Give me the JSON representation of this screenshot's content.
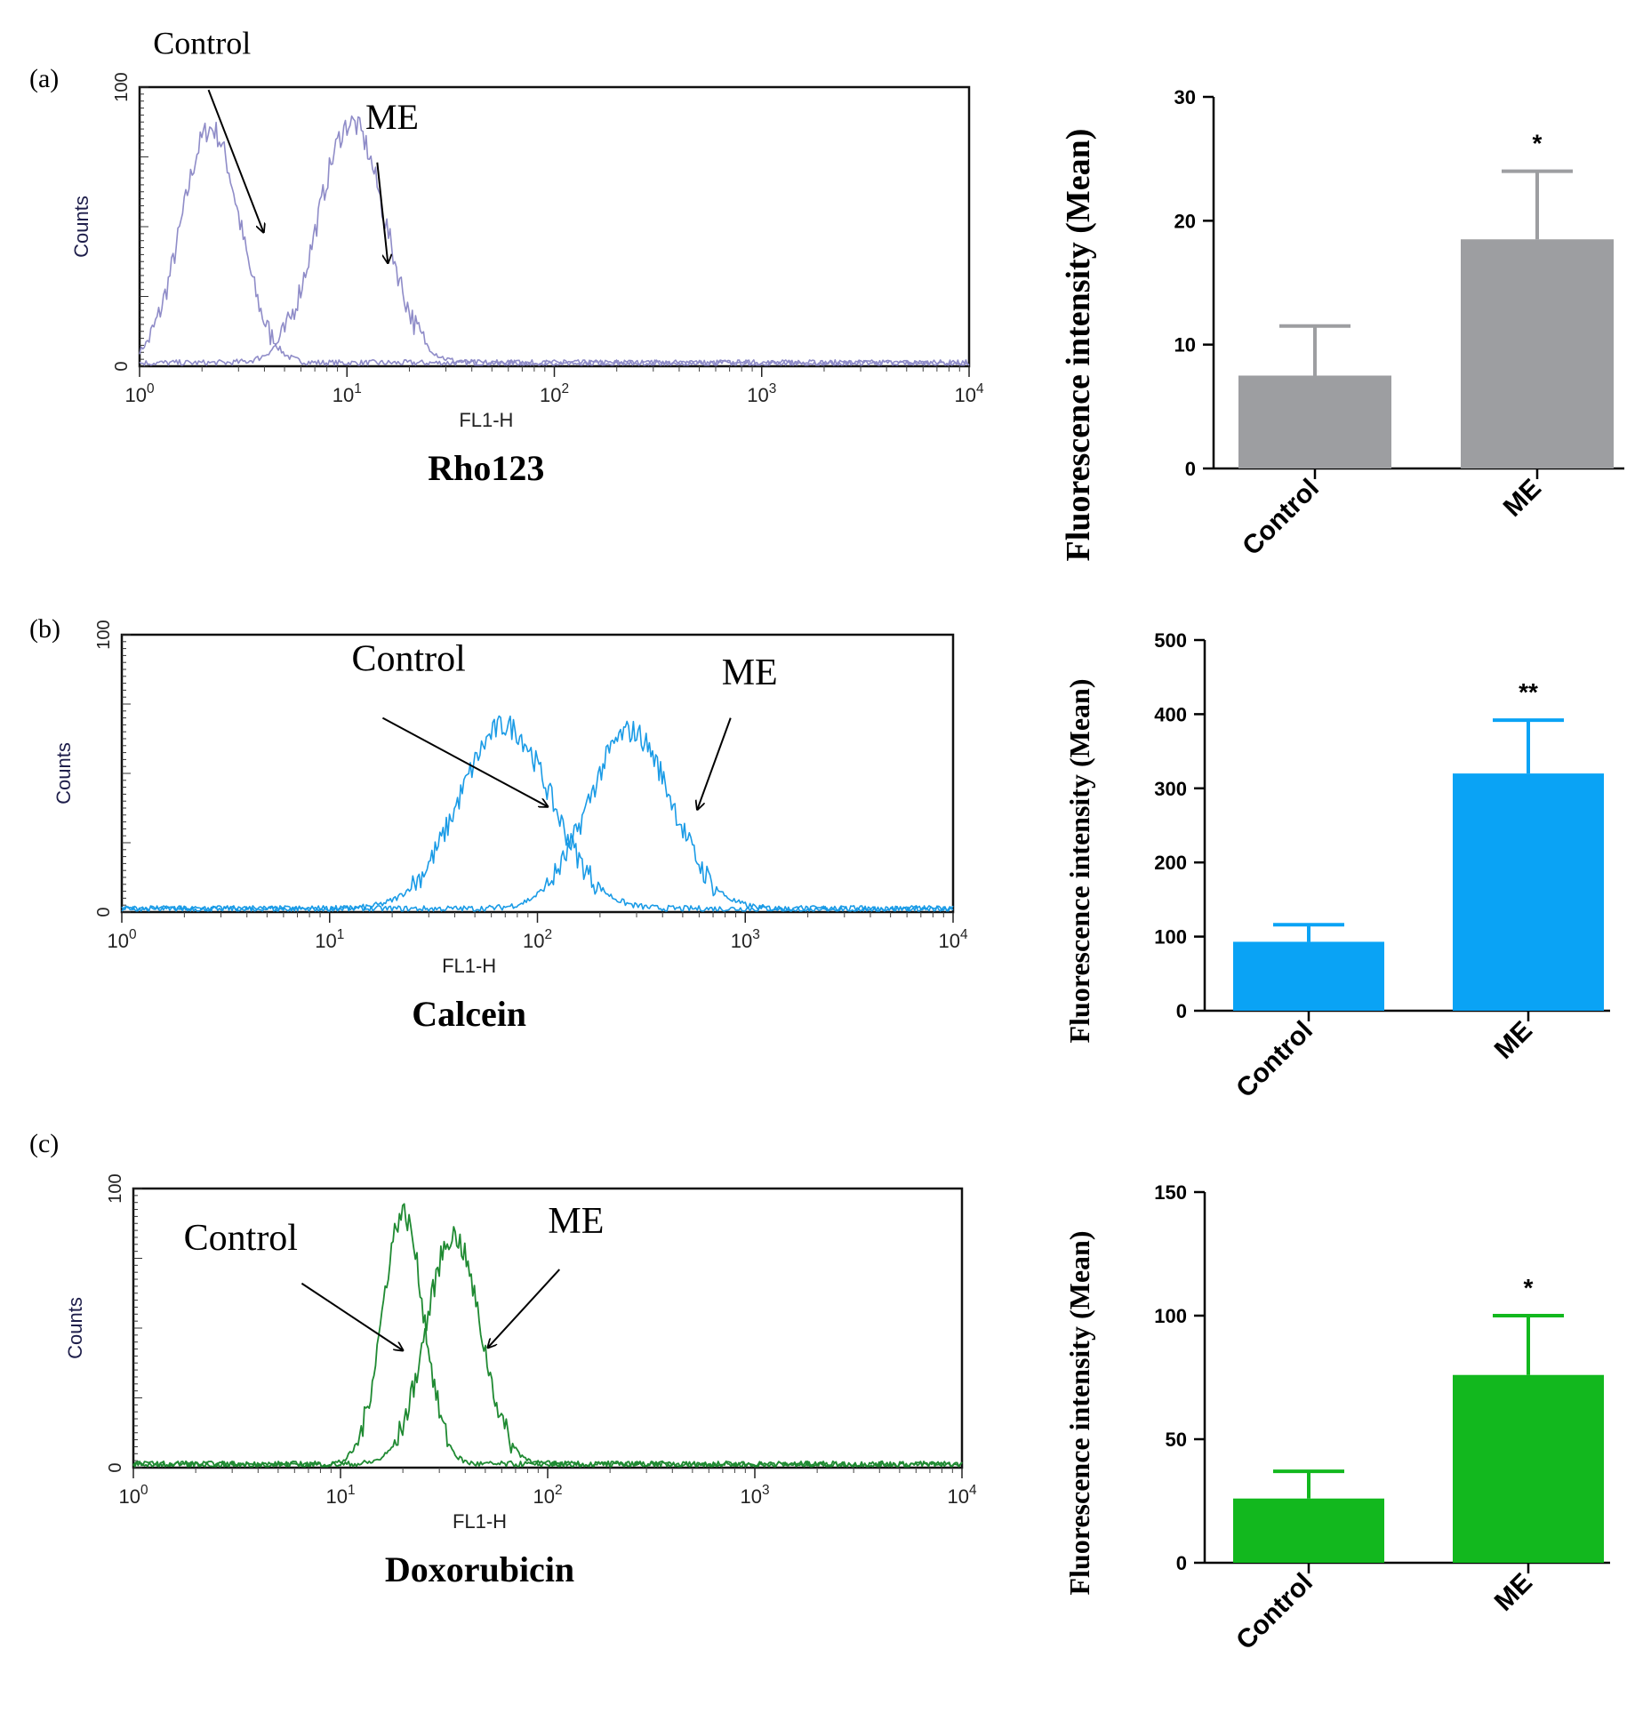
{
  "panels": [
    {
      "panel_label": "(a)",
      "dye": "Rho123",
      "histogram": {
        "y_axis_label": "Counts",
        "x_axis_label": "FL1-H",
        "y_ticks": [
          "0",
          "100"
        ],
        "x_ticks": [
          "10^0",
          "10^1",
          "10^2",
          "10^3",
          "10^4"
        ],
        "control_label": "Control",
        "me_label": "ME",
        "color": "#8f8cc8"
      },
      "bar": {
        "ylabel": "Fluorescence intensity (Mean)",
        "y_ticks": [
          "0",
          "10",
          "20",
          "30"
        ],
        "categories": [
          "Control",
          "ME"
        ],
        "significance": "*",
        "color": "#9d9ea1"
      }
    },
    {
      "panel_label": "(b)",
      "dye": "Calcein",
      "histogram": {
        "y_axis_label": "Counts",
        "x_axis_label": "FL1-H",
        "y_ticks": [
          "0",
          "100"
        ],
        "x_ticks": [
          "10^0",
          "10^1",
          "10^2",
          "10^3",
          "10^4"
        ],
        "control_label": "Control",
        "me_label": "ME",
        "color": "#1a9be6"
      },
      "bar": {
        "ylabel": "Fluorescence intensity (Mean)",
        "y_ticks": [
          "0",
          "100",
          "200",
          "300",
          "400",
          "500"
        ],
        "categories": [
          "Control",
          "ME"
        ],
        "significance": "**",
        "color": "#0aa3f5"
      }
    },
    {
      "panel_label": "(c)",
      "dye": "Doxorubicin",
      "histogram": {
        "y_axis_label": "Counts",
        "x_axis_label": "FL1-H",
        "y_ticks": [
          "0",
          "100"
        ],
        "x_ticks": [
          "10^0",
          "10^1",
          "10^2",
          "10^3",
          "10^4"
        ],
        "control_label": "Control",
        "me_label": "ME",
        "color": "#1f8a32"
      },
      "bar": {
        "ylabel": "Fluorescence intensity (Mean)",
        "y_ticks": [
          "0",
          "50",
          "100",
          "150"
        ],
        "categories": [
          "Control",
          "ME"
        ],
        "significance": "*",
        "color": "#12b81e"
      }
    }
  ],
  "chart_data": [
    {
      "type": "line",
      "title": "Rho123",
      "xlabel": "FL1-H",
      "ylabel": "Counts",
      "x_scale": "log",
      "xlim": [
        1,
        10000
      ],
      "ylim": [
        0,
        100
      ],
      "series": [
        {
          "name": "Control",
          "peak_x": 2.2,
          "peak_y": 84,
          "log_sigma": 0.14
        },
        {
          "name": "ME",
          "peak_x": 10.5,
          "peak_y": 86,
          "log_sigma": 0.16
        }
      ]
    },
    {
      "type": "bar",
      "title": "Rho123",
      "categories": [
        "Control",
        "ME"
      ],
      "values": [
        7.5,
        18.5
      ],
      "errors": [
        4,
        5.5
      ],
      "ylabel": "Fluorescence intensity (Mean)",
      "ylim": [
        0,
        30
      ],
      "annotations": [
        "",
        "*"
      ]
    },
    {
      "type": "line",
      "title": "Calcein",
      "xlabel": "FL1-H",
      "ylabel": "Counts",
      "x_scale": "log",
      "xlim": [
        1,
        10000
      ],
      "ylim": [
        0,
        100
      ],
      "series": [
        {
          "name": "Control",
          "peak_x": 70,
          "peak_y": 66,
          "log_sigma": 0.22
        },
        {
          "name": "ME",
          "peak_x": 280,
          "peak_y": 64,
          "log_sigma": 0.2
        }
      ]
    },
    {
      "type": "bar",
      "title": "Calcein",
      "categories": [
        "Control",
        "ME"
      ],
      "values": [
        93,
        320
      ],
      "errors": [
        23,
        72
      ],
      "ylabel": "Fluorescence intensity (Mean)",
      "ylim": [
        0,
        500
      ],
      "annotations": [
        "",
        "**"
      ]
    },
    {
      "type": "line",
      "title": "Doxorubicin",
      "xlabel": "FL1-H",
      "ylabel": "Counts",
      "x_scale": "log",
      "xlim": [
        1,
        10000
      ],
      "ylim": [
        0,
        100
      ],
      "series": [
        {
          "name": "Control",
          "peak_x": 20,
          "peak_y": 90,
          "log_sigma": 0.1
        },
        {
          "name": "ME",
          "peak_x": 35,
          "peak_y": 82,
          "log_sigma": 0.13
        }
      ]
    },
    {
      "type": "bar",
      "title": "Doxorubicin",
      "categories": [
        "Control",
        "ME"
      ],
      "values": [
        26,
        76
      ],
      "errors": [
        11,
        24
      ],
      "ylabel": "Fluorescence intensity (Mean)",
      "ylim": [
        0,
        150
      ],
      "annotations": [
        "",
        "*"
      ]
    }
  ]
}
